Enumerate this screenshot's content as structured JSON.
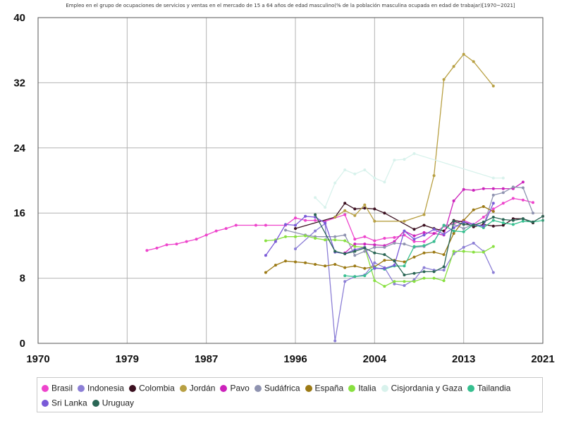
{
  "chart_data": {
    "type": "line",
    "title": "Empleo en el grupo de ocupaciones de servicios y ventas en el mercado de 15 a 64 años de edad masculino(% de la población masculina ocupada en edad de trabajar)[1970~2021]",
    "xlabel": "",
    "ylabel": "",
    "xlim": [
      1970,
      2021
    ],
    "ylim": [
      0,
      40
    ],
    "grid": true,
    "legend_position": "bottom",
    "x_ticks": [
      "1970",
      "1979",
      "1987",
      "1996",
      "2004",
      "2013",
      "2021"
    ],
    "y_ticks": [
      "0",
      "8",
      "16",
      "24",
      "32",
      "40"
    ],
    "series": [
      {
        "name": "Brasil",
        "color": "#ee44cc",
        "points": [
          [
            1981,
            11.4
          ],
          [
            1982,
            11.7
          ],
          [
            1983,
            12.1
          ],
          [
            1984,
            12.2
          ],
          [
            1985,
            12.5
          ],
          [
            1986,
            12.8
          ],
          [
            1987,
            13.3
          ],
          [
            1988,
            13.8
          ],
          [
            1989,
            14.1
          ],
          [
            1990,
            14.5
          ],
          [
            1992,
            14.5
          ],
          [
            1993,
            14.5
          ],
          [
            1995,
            14.5
          ],
          [
            1996,
            15.4
          ],
          [
            1997,
            15.1
          ],
          [
            1998,
            15.1
          ],
          [
            1999,
            15.0
          ],
          [
            2001,
            15.8
          ],
          [
            2002,
            12.8
          ],
          [
            2003,
            13.1
          ],
          [
            2004,
            12.6
          ],
          [
            2005,
            12.9
          ],
          [
            2006,
            13.0
          ],
          [
            2007,
            13.3
          ],
          [
            2008,
            12.5
          ],
          [
            2009,
            12.5
          ],
          [
            2011,
            14.4
          ],
          [
            2012,
            14.7
          ],
          [
            2013,
            15.1
          ],
          [
            2014,
            14.6
          ],
          [
            2015,
            15.5
          ],
          [
            2016,
            16.5
          ],
          [
            2017,
            17.2
          ],
          [
            2018,
            17.8
          ],
          [
            2019,
            17.6
          ],
          [
            2020,
            17.3
          ]
        ]
      },
      {
        "name": "Indonesia",
        "color": "#8c7fd6",
        "points": [
          [
            1996,
            11.6
          ],
          [
            1998,
            13.8
          ],
          [
            1999,
            14.7
          ],
          [
            2000,
            0.3
          ],
          [
            2001,
            7.6
          ],
          [
            2002,
            8.2
          ],
          [
            2003,
            8.4
          ],
          [
            2004,
            9.9
          ],
          [
            2005,
            9.3
          ],
          [
            2006,
            7.3
          ],
          [
            2007,
            7.1
          ],
          [
            2008,
            7.8
          ],
          [
            2009,
            9.3
          ],
          [
            2010,
            9.0
          ],
          [
            2011,
            9.0
          ],
          [
            2012,
            11.0
          ],
          [
            2013,
            11.8
          ],
          [
            2014,
            12.3
          ],
          [
            2015,
            11.3
          ],
          [
            2016,
            8.7
          ]
        ]
      },
      {
        "name": "Colombia",
        "color": "#3b1020",
        "points": [
          [
            1996,
            14.1
          ],
          [
            2000,
            15.5
          ],
          [
            2001,
            17.2
          ],
          [
            2002,
            16.5
          ],
          [
            2003,
            16.6
          ],
          [
            2004,
            16.5
          ],
          [
            2005,
            16.0
          ],
          [
            2008,
            14.0
          ],
          [
            2009,
            14.5
          ],
          [
            2010,
            14.1
          ],
          [
            2011,
            13.8
          ],
          [
            2012,
            15.1
          ],
          [
            2013,
            14.9
          ],
          [
            2014,
            14.3
          ],
          [
            2015,
            14.6
          ],
          [
            2016,
            14.4
          ],
          [
            2017,
            14.5
          ],
          [
            2018,
            15.3
          ],
          [
            2019,
            15.3
          ],
          [
            2020,
            14.8
          ]
        ]
      },
      {
        "name": "Jordán",
        "color": "#b8a043",
        "points": [
          [
            2000,
            15.5
          ],
          [
            2001,
            16.3
          ],
          [
            2002,
            15.7
          ],
          [
            2003,
            17.0
          ],
          [
            2004,
            15.0
          ],
          [
            2007,
            15.0
          ],
          [
            2009,
            15.8
          ],
          [
            2010,
            20.6
          ],
          [
            2011,
            32.4
          ],
          [
            2012,
            34.0
          ],
          [
            2013,
            35.5
          ],
          [
            2014,
            34.6
          ],
          [
            2016,
            31.6
          ]
        ]
      },
      {
        "name": "Pavo",
        "color": "#cc22bb",
        "points": [
          [
            2001,
            11.1
          ],
          [
            2002,
            12.2
          ],
          [
            2003,
            12.2
          ],
          [
            2004,
            12.1
          ],
          [
            2005,
            12.0
          ],
          [
            2006,
            12.5
          ],
          [
            2007,
            13.8
          ],
          [
            2008,
            13.2
          ],
          [
            2009,
            13.6
          ],
          [
            2010,
            13.5
          ],
          [
            2011,
            13.3
          ],
          [
            2012,
            17.5
          ],
          [
            2013,
            18.9
          ],
          [
            2014,
            18.8
          ],
          [
            2015,
            19.0
          ],
          [
            2016,
            19.0
          ],
          [
            2017,
            19.0
          ],
          [
            2018,
            19.0
          ],
          [
            2019,
            19.8
          ]
        ]
      },
      {
        "name": "Sudáfrica",
        "color": "#8f93b0",
        "points": [
          [
            1995,
            13.9
          ],
          [
            1997,
            13.3
          ],
          [
            1998,
            13.1
          ],
          [
            2000,
            13.1
          ],
          [
            2001,
            13.3
          ],
          [
            2002,
            10.8
          ],
          [
            2003,
            11.3
          ],
          [
            2004,
            11.8
          ],
          [
            2005,
            11.8
          ],
          [
            2006,
            12.3
          ],
          [
            2007,
            12.2
          ],
          [
            2008,
            11.8
          ],
          [
            2009,
            11.9
          ],
          [
            2010,
            12.5
          ],
          [
            2011,
            14.5
          ],
          [
            2012,
            14.6
          ],
          [
            2013,
            14.1
          ],
          [
            2014,
            14.6
          ],
          [
            2015,
            14.4
          ],
          [
            2016,
            18.2
          ],
          [
            2017,
            18.5
          ],
          [
            2018,
            19.2
          ],
          [
            2019,
            19.1
          ],
          [
            2020,
            16.0
          ]
        ]
      },
      {
        "name": "España",
        "color": "#9c7a15",
        "points": [
          [
            1993,
            8.7
          ],
          [
            1994,
            9.6
          ],
          [
            1995,
            10.1
          ],
          [
            1996,
            10.0
          ],
          [
            1997,
            9.9
          ],
          [
            1998,
            9.7
          ],
          [
            1999,
            9.5
          ],
          [
            2000,
            9.7
          ],
          [
            2001,
            9.3
          ],
          [
            2002,
            9.5
          ],
          [
            2003,
            9.2
          ],
          [
            2004,
            9.4
          ],
          [
            2005,
            10.2
          ],
          [
            2006,
            10.2
          ],
          [
            2007,
            10.0
          ],
          [
            2008,
            10.6
          ],
          [
            2009,
            11.1
          ],
          [
            2010,
            11.2
          ],
          [
            2011,
            10.9
          ],
          [
            2012,
            13.5
          ],
          [
            2013,
            15.1
          ],
          [
            2014,
            16.4
          ],
          [
            2015,
            16.8
          ],
          [
            2016,
            16.2
          ]
        ]
      },
      {
        "name": "Italia",
        "color": "#88e040",
        "points": [
          [
            1993,
            12.6
          ],
          [
            1994,
            12.7
          ],
          [
            1995,
            13.1
          ],
          [
            1996,
            13.1
          ],
          [
            1997,
            13.2
          ],
          [
            1998,
            12.9
          ],
          [
            1999,
            12.7
          ],
          [
            2000,
            12.7
          ],
          [
            2001,
            12.6
          ],
          [
            2002,
            11.9
          ],
          [
            2003,
            11.8
          ],
          [
            2004,
            7.7
          ],
          [
            2005,
            7.0
          ],
          [
            2006,
            7.6
          ],
          [
            2007,
            7.6
          ],
          [
            2008,
            7.6
          ],
          [
            2009,
            8.0
          ],
          [
            2010,
            8.0
          ],
          [
            2011,
            7.7
          ],
          [
            2012,
            11.3
          ],
          [
            2013,
            11.3
          ],
          [
            2014,
            11.2
          ],
          [
            2015,
            11.2
          ],
          [
            2016,
            11.9
          ]
        ]
      },
      {
        "name": "Cisjordania y Gaza",
        "color": "#d8f2ec",
        "points": [
          [
            1998,
            17.9
          ],
          [
            1999,
            16.7
          ],
          [
            2000,
            19.7
          ],
          [
            2001,
            21.3
          ],
          [
            2002,
            20.8
          ],
          [
            2003,
            21.3
          ],
          [
            2004,
            20.3
          ],
          [
            2005,
            19.8
          ],
          [
            2006,
            22.5
          ],
          [
            2007,
            22.6
          ],
          [
            2008,
            23.3
          ],
          [
            2016,
            20.3
          ],
          [
            2017,
            20.3
          ]
        ]
      },
      {
        "name": "Tailandia",
        "color": "#36bf8f",
        "points": [
          [
            2001,
            8.3
          ],
          [
            2002,
            8.2
          ],
          [
            2003,
            8.3
          ],
          [
            2004,
            9.3
          ],
          [
            2005,
            9.1
          ],
          [
            2006,
            9.5
          ],
          [
            2007,
            9.5
          ],
          [
            2008,
            11.9
          ],
          [
            2009,
            12.0
          ],
          [
            2010,
            12.5
          ],
          [
            2011,
            14.5
          ],
          [
            2012,
            13.8
          ],
          [
            2013,
            13.7
          ],
          [
            2014,
            14.6
          ],
          [
            2015,
            14.2
          ],
          [
            2016,
            15.1
          ],
          [
            2017,
            14.8
          ],
          [
            2018,
            14.6
          ],
          [
            2019,
            15.0
          ],
          [
            2020,
            14.9
          ],
          [
            2021,
            15.1
          ]
        ]
      },
      {
        "name": "Sri Lanka",
        "color": "#7a5ad8",
        "points": [
          [
            1993,
            10.8
          ],
          [
            1994,
            12.5
          ],
          [
            1995,
            14.6
          ],
          [
            1996,
            14.5
          ],
          [
            1997,
            15.6
          ],
          [
            1998,
            15.5
          ],
          [
            1999,
            14.8
          ],
          [
            2000,
            11.2
          ],
          [
            2001,
            11.0
          ],
          [
            2002,
            11.5
          ],
          [
            2003,
            11.8
          ],
          [
            2004,
            9.2
          ],
          [
            2005,
            9.2
          ],
          [
            2006,
            9.6
          ],
          [
            2007,
            13.8
          ],
          [
            2008,
            12.8
          ],
          [
            2009,
            13.3
          ],
          [
            2010,
            14.0
          ],
          [
            2011,
            13.4
          ],
          [
            2012,
            14.2
          ],
          [
            2013,
            14.9
          ],
          [
            2014,
            14.6
          ],
          [
            2015,
            14.4
          ],
          [
            2016,
            17.2
          ]
        ]
      },
      {
        "name": "Uruguay",
        "color": "#2a6655",
        "points": [
          [
            1998,
            15.8
          ],
          [
            2000,
            11.3
          ],
          [
            2001,
            11.0
          ],
          [
            2002,
            11.3
          ],
          [
            2003,
            11.7
          ],
          [
            2004,
            11.1
          ],
          [
            2005,
            10.9
          ],
          [
            2006,
            10.1
          ],
          [
            2007,
            8.4
          ],
          [
            2008,
            8.6
          ],
          [
            2009,
            8.8
          ],
          [
            2010,
            8.8
          ],
          [
            2011,
            9.4
          ],
          [
            2012,
            15.0
          ],
          [
            2013,
            14.6
          ],
          [
            2014,
            14.5
          ],
          [
            2015,
            14.9
          ],
          [
            2016,
            15.5
          ],
          [
            2017,
            15.2
          ],
          [
            2018,
            15.1
          ],
          [
            2019,
            15.3
          ],
          [
            2020,
            14.9
          ],
          [
            2021,
            15.6
          ]
        ]
      }
    ]
  }
}
